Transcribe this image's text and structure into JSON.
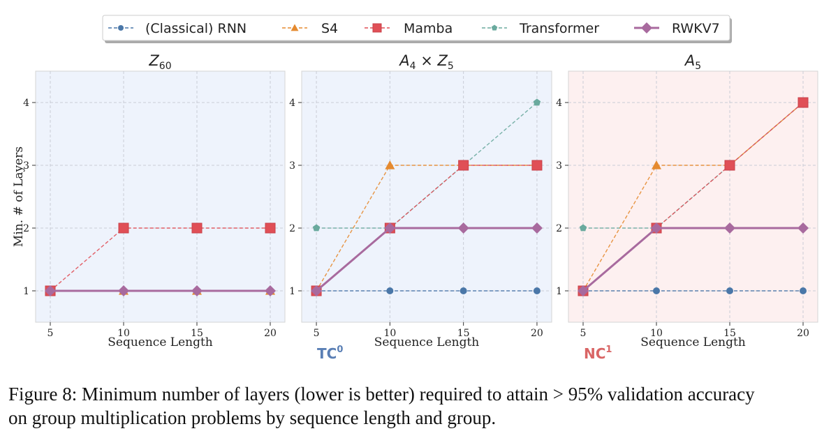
{
  "legend": {
    "entries": [
      {
        "name": "(Classical) RNN",
        "color": "#4a77a8",
        "marker": "circle",
        "dash": true
      },
      {
        "name": "S4",
        "color": "#e58a2f",
        "marker": "triangle",
        "dash": true
      },
      {
        "name": "Mamba",
        "color": "#e04f56",
        "marker": "square",
        "dash": true
      },
      {
        "name": "Transformer",
        "color": "#6aaa9e",
        "marker": "pentagon",
        "dash": true
      },
      {
        "name": "RWKV7",
        "color": "#a86a9e",
        "marker": "diamond",
        "dash": false
      }
    ]
  },
  "chart_data": [
    {
      "type": "line",
      "title_base": "Z",
      "title_sub": "60",
      "xlabel": "Sequence Length",
      "ylabel": "Min. # of Layers",
      "x": [
        5,
        10,
        15,
        20
      ],
      "xlim": [
        4,
        21
      ],
      "ylim": [
        0.5,
        4.5
      ],
      "xticks": [
        5,
        10,
        15,
        20
      ],
      "yticks": [
        1,
        2,
        3,
        4
      ],
      "background": "#eef3fc",
      "complexity_label": "",
      "series": [
        {
          "name": "(Classical) RNN",
          "values": [
            1,
            1,
            1,
            1
          ]
        },
        {
          "name": "S4",
          "values": [
            1,
            1,
            1,
            1
          ]
        },
        {
          "name": "Mamba",
          "values": [
            1,
            2,
            2,
            2
          ]
        },
        {
          "name": "Transformer",
          "values": [
            1,
            1,
            1,
            1
          ]
        },
        {
          "name": "RWKV7",
          "values": [
            1,
            1,
            1,
            1
          ]
        }
      ]
    },
    {
      "type": "line",
      "title_base": "A",
      "title_sub": "4",
      "title_mid": " × ",
      "title_base2": "Z",
      "title_sub2": "5",
      "xlabel": "Sequence Length",
      "ylabel": "",
      "x": [
        5,
        10,
        15,
        20
      ],
      "xlim": [
        4,
        21
      ],
      "ylim": [
        0.5,
        4.5
      ],
      "xticks": [
        5,
        10,
        15,
        20
      ],
      "yticks": [
        1,
        2,
        3,
        4
      ],
      "background": "#eef3fc",
      "complexity_label": "TC",
      "complexity_sup": "0",
      "complexity_color": "#5a7fb5",
      "series": [
        {
          "name": "(Classical) RNN",
          "values": [
            1,
            1,
            1,
            1
          ]
        },
        {
          "name": "S4",
          "values": [
            1,
            3,
            3,
            3
          ]
        },
        {
          "name": "Mamba",
          "values": [
            1,
            2,
            3,
            3
          ]
        },
        {
          "name": "Transformer",
          "values": [
            2,
            2,
            3,
            4
          ]
        },
        {
          "name": "RWKV7",
          "values": [
            1,
            2,
            2,
            2
          ]
        }
      ]
    },
    {
      "type": "line",
      "title_base": "A",
      "title_sub": "5",
      "xlabel": "Sequence Length",
      "ylabel": "",
      "x": [
        5,
        10,
        15,
        20
      ],
      "xlim": [
        4,
        21
      ],
      "ylim": [
        0.5,
        4.5
      ],
      "xticks": [
        5,
        10,
        15,
        20
      ],
      "yticks": [
        1,
        2,
        3,
        4
      ],
      "background": "#fdf0f0",
      "complexity_label": "NC",
      "complexity_sup": "1",
      "complexity_color": "#d96565",
      "series": [
        {
          "name": "(Classical) RNN",
          "values": [
            1,
            1,
            1,
            1
          ]
        },
        {
          "name": "S4",
          "values": [
            1,
            3,
            3,
            4
          ]
        },
        {
          "name": "Mamba",
          "values": [
            1,
            2,
            3,
            4
          ]
        },
        {
          "name": "Transformer",
          "values": [
            2,
            2,
            3,
            4
          ]
        },
        {
          "name": "RWKV7",
          "values": [
            1,
            2,
            2,
            2
          ]
        }
      ]
    }
  ],
  "caption": {
    "line1": "Figure 8: Minimum number of layers (lower is better) required to attain > 95% validation accuracy",
    "line2": "on group multiplication problems by sequence length and group."
  }
}
